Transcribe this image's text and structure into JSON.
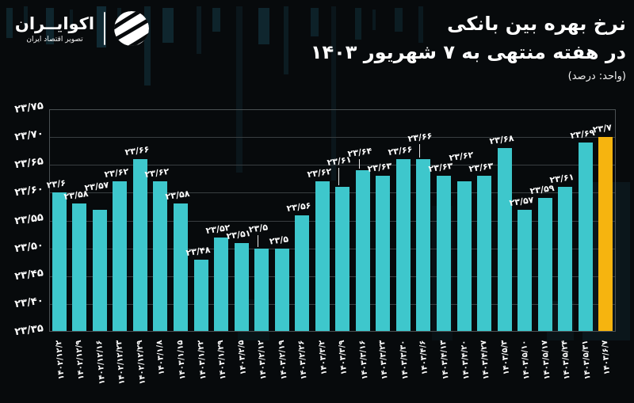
{
  "brand": {
    "name": "اکوایــران",
    "tagline": "تصویر اقتصاد ایران"
  },
  "header": {
    "title_line1": "نرخ بهره بین بانکی",
    "title_line2": "در هفته منتهی به ۷ شهریور ۱۴۰۳",
    "unit_note": "(واحد: درصد)"
  },
  "colors": {
    "bar": "#3ec7cc",
    "highlight": "#f6b40f",
    "background": "#070a0c",
    "grid": "#393e41",
    "text": "#ffffff"
  },
  "chart_data": {
    "type": "bar",
    "title": "نرخ بهره بین بانکی در هفته منتهی به ۷ شهریور ۱۴۰۳",
    "unit": "درصد",
    "ylim": [
      23.35,
      23.75
    ],
    "ytick_step": 0.05,
    "ytick_labels": [
      "۲۳/۳۵",
      "۲۳/۴۰",
      "۲۳/۴۵",
      "۲۳/۵۰",
      "۲۳/۵۵",
      "۲۳/۶۰",
      "۲۳/۶۵",
      "۲۳/۷۰",
      "۲۳/۷۵"
    ],
    "grid": "horizontal",
    "legend": false,
    "categories": [
      "۱۴۰۲/۱۲/۲",
      "۱۴۰۲/۱۲/۹",
      "۱۴۰۲/۱۲/۱۶",
      "۱۴۰۲/۱۲/۲۳",
      "۱۴۰۲/۱۲/۲۹",
      "۱۴۰۳/۱/۸",
      "۱۴۰۳/۱/۱۵",
      "۱۴۰۳/۱/۲۲",
      "۱۴۰۳/۱/۲۹",
      "۱۴۰۳/۲/۵",
      "۱۴۰۳/۲/۱۲",
      "۱۴۰۳/۲/۱۹",
      "۱۴۰۳/۲/۲۶",
      "۱۴۰۳/۳/۲",
      "۱۴۰۳/۳/۹",
      "۱۴۰۳/۳/۱۶",
      "۱۴۰۳/۳/۲۳",
      "۱۴۰۳/۳/۳۰",
      "۱۴۰۳/۴/۶",
      "۱۴۰۳/۴/۱۳",
      "۱۴۰۳/۴/۲۰",
      "۱۴۰۳/۴/۲۷",
      "۱۴۰۳/۵/۳",
      "۱۴۰۳/۵/۱۰",
      "۱۴۰۳/۵/۱۷",
      "۱۴۰۳/۵/۲۴",
      "۱۴۰۳/۵/۳۱",
      "۱۴۰۳/۶/۷"
    ],
    "values": [
      23.6,
      23.58,
      23.57,
      23.62,
      23.66,
      23.62,
      23.58,
      23.48,
      23.52,
      23.51,
      23.5,
      23.5,
      23.56,
      23.62,
      23.61,
      23.64,
      23.63,
      23.66,
      23.66,
      23.63,
      23.62,
      23.63,
      23.68,
      23.57,
      23.59,
      23.61,
      23.69,
      23.7
    ],
    "value_labels": [
      "۲۳/۶",
      "۲۳/۵۸",
      "۲۳/۵۷",
      "۲۳/۶۲",
      "۲۳/۶۶",
      "۲۳/۶۲",
      "۲۳/۵۸",
      "۲۳/۴۸",
      "۲۳/۵۲",
      "۲۳/۵۱",
      "۲۳/۵",
      "۲۳/۵",
      "۲۳/۵۶",
      "۲۳/۶۲",
      "۲۳/۶۱",
      "۲۳/۶۴",
      "۲۳/۶۳",
      "۲۳/۶۶",
      "۲۳/۶۶",
      "۲۳/۶۳",
      "۲۳/۶۲",
      "۲۳/۶۳",
      "۲۳/۶۸",
      "۲۳/۵۷",
      "۲۳/۵۹",
      "۲۳/۶۱",
      "۲۳/۶۹",
      "۲۳/۷"
    ],
    "highlight_index": 27,
    "annotations": {
      "raised_label_offsets": {
        "2": 19,
        "10": 15,
        "14": 22,
        "15": 12,
        "18": 17,
        "20": 21
      },
      "connector_indices": [
        10,
        14,
        15,
        18
      ]
    }
  }
}
